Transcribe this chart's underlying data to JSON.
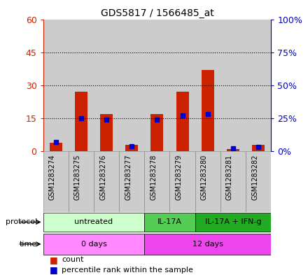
{
  "title": "GDS5817 / 1566485_at",
  "samples": [
    "GSM1283274",
    "GSM1283275",
    "GSM1283276",
    "GSM1283277",
    "GSM1283278",
    "GSM1283279",
    "GSM1283280",
    "GSM1283281",
    "GSM1283282"
  ],
  "counts": [
    4,
    27,
    17,
    3,
    17,
    27,
    37,
    1,
    3
  ],
  "percentiles": [
    7,
    25,
    24,
    4,
    24,
    27,
    28,
    2,
    3
  ],
  "ylim_left": [
    0,
    60
  ],
  "ylim_right": [
    0,
    100
  ],
  "yticks_left": [
    0,
    15,
    30,
    45,
    60
  ],
  "yticks_right": [
    0,
    25,
    50,
    75,
    100
  ],
  "ytick_labels_left": [
    "0",
    "15",
    "30",
    "45",
    "60"
  ],
  "ytick_labels_right": [
    "0%",
    "25%",
    "50%",
    "75%",
    "100%"
  ],
  "bar_color": "#cc2200",
  "pct_color": "#0000cc",
  "bar_width": 0.5,
  "protocol_groups": [
    {
      "label": "untreated",
      "start": 0,
      "end": 3,
      "color": "#ccffcc"
    },
    {
      "label": "IL-17A",
      "start": 4,
      "end": 5,
      "color": "#55cc55"
    },
    {
      "label": "IL-17A + IFN-g",
      "start": 6,
      "end": 8,
      "color": "#22aa22"
    }
  ],
  "time_groups": [
    {
      "label": "0 days",
      "start": 0,
      "end": 3,
      "color": "#ff88ff"
    },
    {
      "label": "12 days",
      "start": 4,
      "end": 8,
      "color": "#ee44ee"
    }
  ],
  "tick_color_left": "#cc2200",
  "tick_color_right": "#0000cc",
  "grid_color": "#000000",
  "sample_bg_color": "#cccccc",
  "sample_border_color": "#888888"
}
